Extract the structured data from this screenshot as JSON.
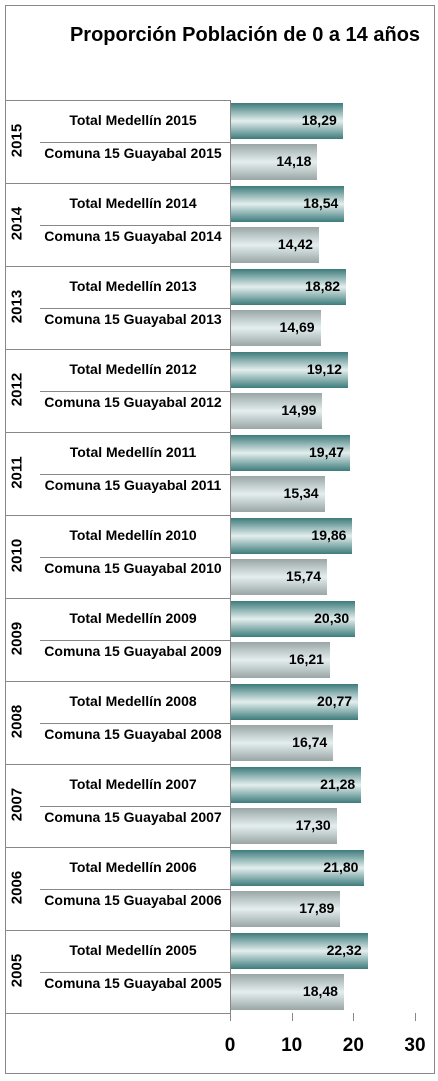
{
  "chart_data": {
    "type": "bar",
    "title": "Proporción Población de 0 a 14 años",
    "groups": [
      {
        "name": "2015",
        "bars": [
          {
            "label": "Total Medellín 2015",
            "value": 18.29,
            "value_label": "18,29"
          },
          {
            "label": "Comuna 15 Guayabal 2015",
            "value": 14.18,
            "value_label": "14,18"
          }
        ]
      },
      {
        "name": "2014",
        "bars": [
          {
            "label": "Total Medellín 2014",
            "value": 18.54,
            "value_label": "18,54"
          },
          {
            "label": "Comuna 15 Guayabal 2014",
            "value": 14.42,
            "value_label": "14,42"
          }
        ]
      },
      {
        "name": "2013",
        "bars": [
          {
            "label": "Total Medellín 2013",
            "value": 18.82,
            "value_label": "18,82"
          },
          {
            "label": "Comuna 15 Guayabal 2013",
            "value": 14.69,
            "value_label": "14,69"
          }
        ]
      },
      {
        "name": "2012",
        "bars": [
          {
            "label": "Total Medellín 2012",
            "value": 19.12,
            "value_label": "19,12"
          },
          {
            "label": "Comuna 15 Guayabal 2012",
            "value": 14.99,
            "value_label": "14,99"
          }
        ]
      },
      {
        "name": "2011",
        "bars": [
          {
            "label": "Total Medellín 2011",
            "value": 19.47,
            "value_label": "19,47"
          },
          {
            "label": "Comuna 15 Guayabal 2011",
            "value": 15.34,
            "value_label": "15,34"
          }
        ]
      },
      {
        "name": "2010",
        "bars": [
          {
            "label": "Total Medellín 2010",
            "value": 19.86,
            "value_label": "19,86"
          },
          {
            "label": "Comuna 15 Guayabal 2010",
            "value": 15.74,
            "value_label": "15,74"
          }
        ]
      },
      {
        "name": "2009",
        "bars": [
          {
            "label": "Total Medellín 2009",
            "value": 20.3,
            "value_label": "20,30"
          },
          {
            "label": "Comuna 15 Guayabal 2009",
            "value": 16.21,
            "value_label": "16,21"
          }
        ]
      },
      {
        "name": "2008",
        "bars": [
          {
            "label": "Total Medellín 2008",
            "value": 20.77,
            "value_label": "20,77"
          },
          {
            "label": "Comuna 15 Guayabal 2008",
            "value": 16.74,
            "value_label": "16,74"
          }
        ]
      },
      {
        "name": "2007",
        "bars": [
          {
            "label": "Total Medellín 2007",
            "value": 21.28,
            "value_label": "21,28"
          },
          {
            "label": "Comuna 15 Guayabal 2007",
            "value": 17.3,
            "value_label": "17,30"
          }
        ]
      },
      {
        "name": "2006",
        "bars": [
          {
            "label": "Total Medellín 2006",
            "value": 21.8,
            "value_label": "21,80"
          },
          {
            "label": "Comuna 15 Guayabal 2006",
            "value": 17.89,
            "value_label": "17,89"
          }
        ]
      },
      {
        "name": "2005",
        "bars": [
          {
            "label": "Total Medellín 2005",
            "value": 22.32,
            "value_label": "22,32"
          },
          {
            "label": "Comuna 15 Guayabal 2005",
            "value": 18.48,
            "value_label": "18,48"
          }
        ]
      }
    ],
    "colors": [
      "#3d7b7b",
      "#9aa6a6"
    ],
    "xlim": [
      0,
      30
    ],
    "xticks": [
      0,
      10,
      20,
      30
    ]
  }
}
